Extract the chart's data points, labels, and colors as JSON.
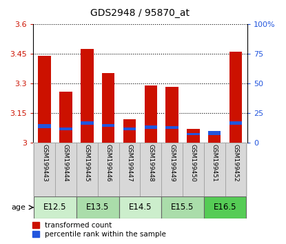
{
  "title": "GDS2948 / 95870_at",
  "samples": [
    "GSM199443",
    "GSM199444",
    "GSM199445",
    "GSM199446",
    "GSM199447",
    "GSM199448",
    "GSM199449",
    "GSM199450",
    "GSM199451",
    "GSM199452"
  ],
  "red_values": [
    3.44,
    3.26,
    3.475,
    3.355,
    3.12,
    3.29,
    3.285,
    3.07,
    3.05,
    3.46
  ],
  "blue_values": [
    3.075,
    3.062,
    3.09,
    3.08,
    3.062,
    3.07,
    3.07,
    3.04,
    3.038,
    3.09
  ],
  "blue_heights": [
    0.018,
    0.015,
    0.018,
    0.016,
    0.016,
    0.016,
    0.015,
    0.01,
    0.02,
    0.018
  ],
  "ymin": 3.0,
  "ymax": 3.6,
  "yticks": [
    3.0,
    3.15,
    3.3,
    3.45,
    3.6
  ],
  "ytick_labels": [
    "3",
    "3.15",
    "3.3",
    "3.45",
    "3.6"
  ],
  "right_yticks": [
    0,
    25,
    50,
    75,
    100
  ],
  "right_ytick_labels": [
    "0",
    "25",
    "50",
    "75",
    "100%"
  ],
  "age_groups": [
    {
      "label": "E12.5",
      "start": 0,
      "end": 2,
      "color": "#cceecc"
    },
    {
      "label": "E13.5",
      "start": 2,
      "end": 4,
      "color": "#aaddaa"
    },
    {
      "label": "E14.5",
      "start": 4,
      "end": 6,
      "color": "#cceecc"
    },
    {
      "label": "E15.5",
      "start": 6,
      "end": 8,
      "color": "#aaddaa"
    },
    {
      "label": "E16.5",
      "start": 8,
      "end": 10,
      "color": "#55cc55"
    }
  ],
  "bar_color": "#cc1100",
  "blue_color": "#2255dd",
  "bar_width": 0.6,
  "bg_color": "#ffffff",
  "plot_bg": "#ffffff",
  "legend_red": "transformed count",
  "legend_blue": "percentile rank within the sample",
  "title_fontsize": 10,
  "tick_fontsize": 8,
  "label_fontsize": 6.5,
  "age_fontsize": 8.5
}
